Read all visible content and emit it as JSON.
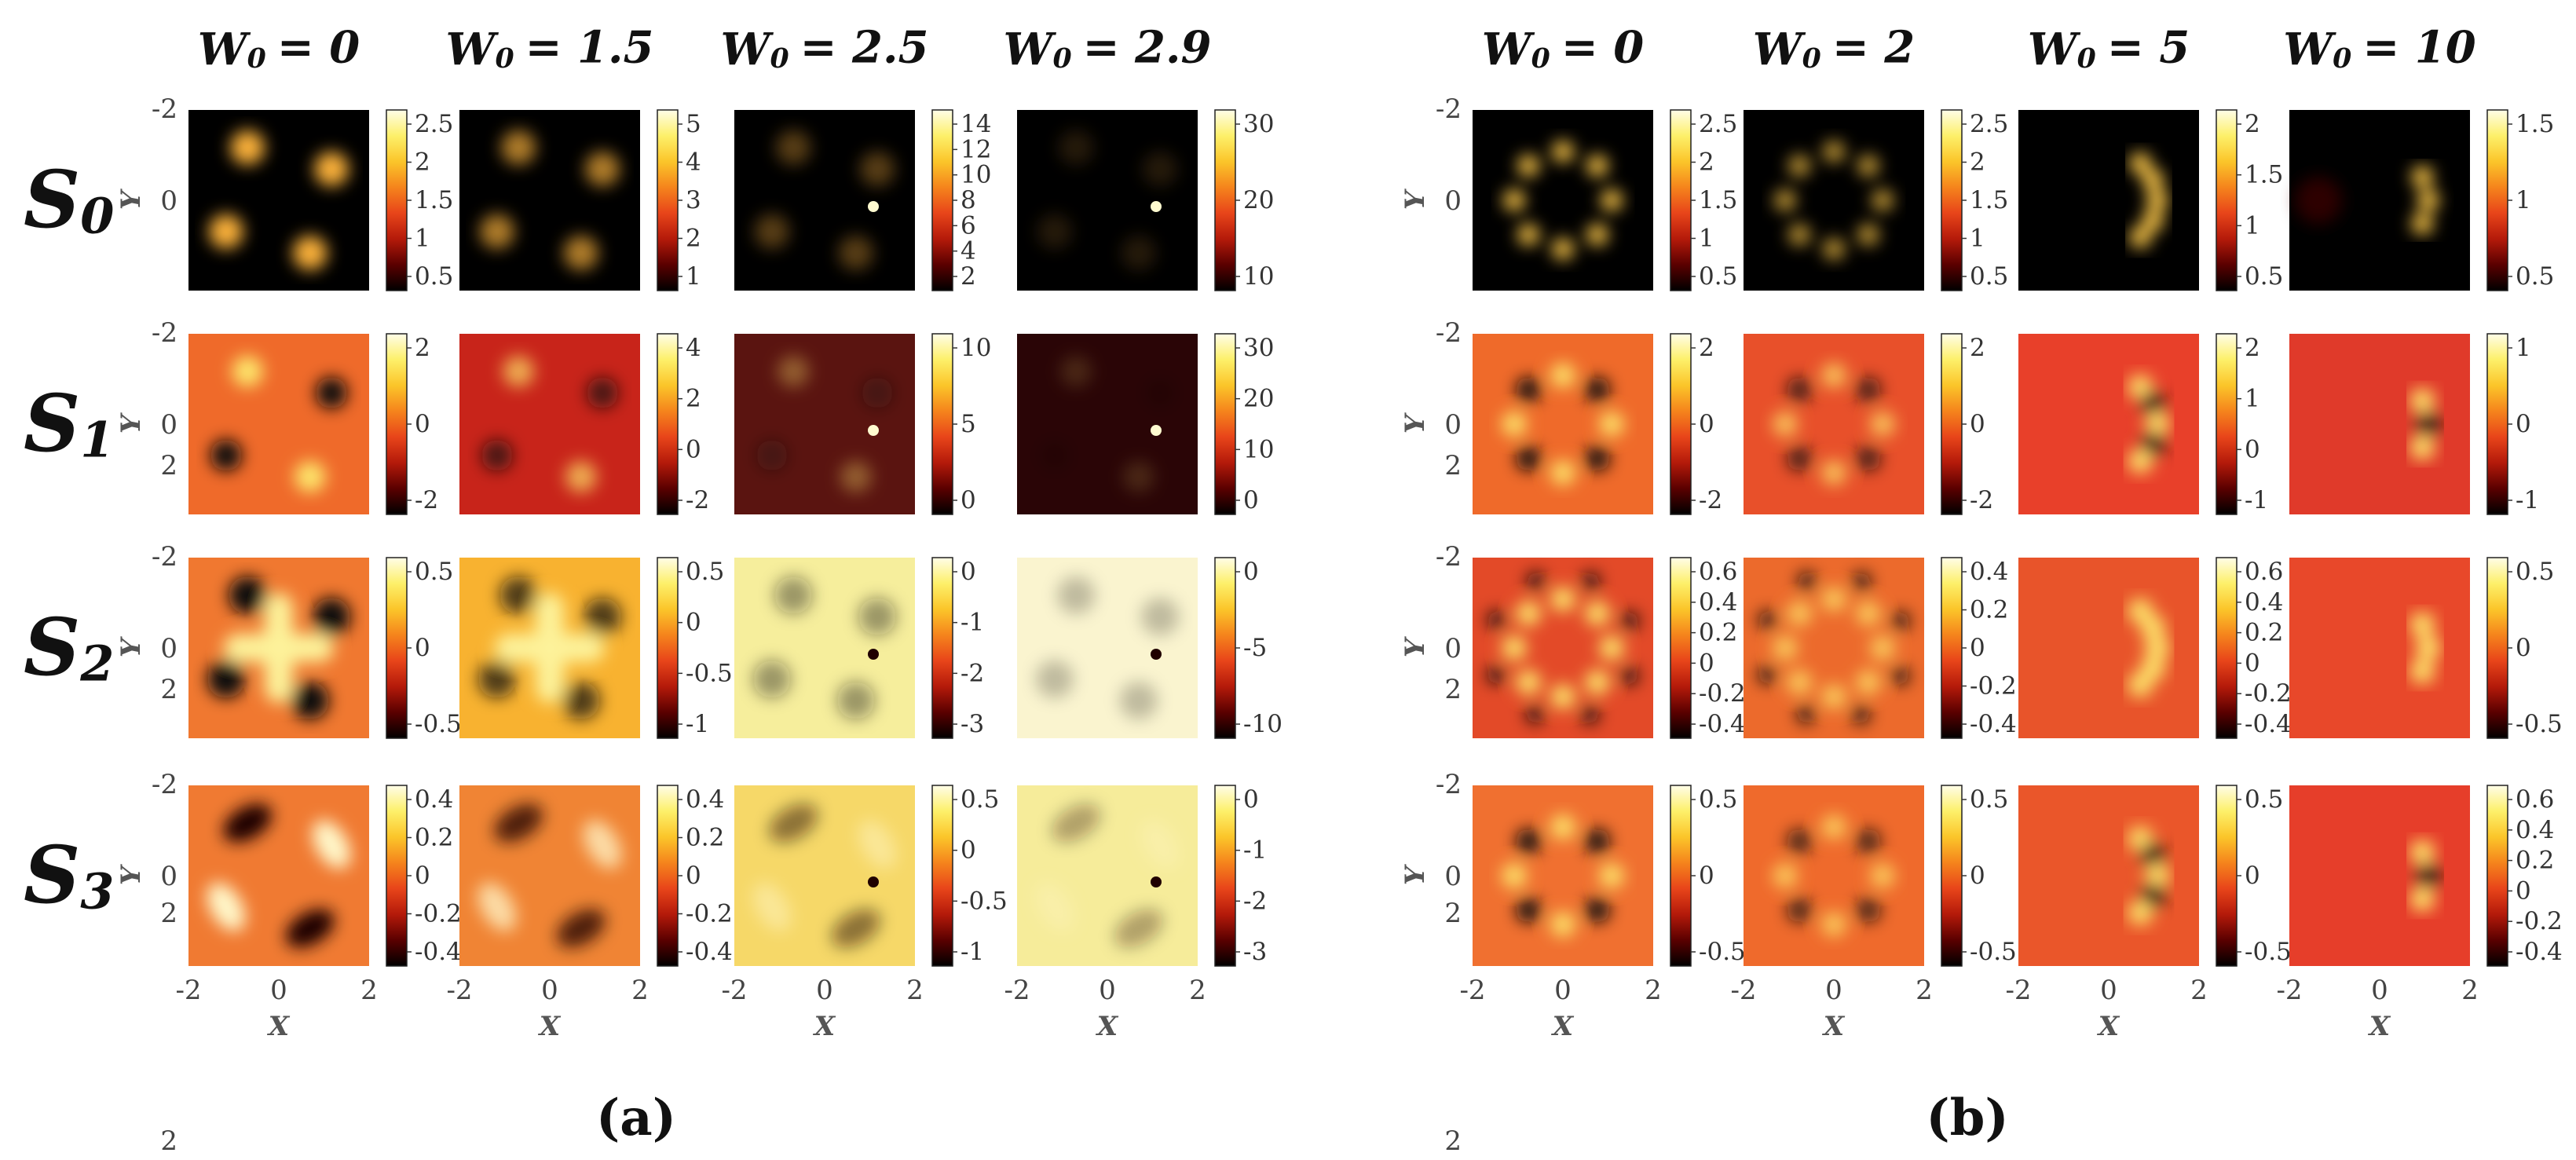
{
  "figure": {
    "panels": [
      {
        "label": "(a)",
        "columns": [
          {
            "header_var": "W",
            "header_sub": "0",
            "header_val": "= 0"
          },
          {
            "header_var": "W",
            "header_sub": "0",
            "header_val": "= 1.5"
          },
          {
            "header_var": "W",
            "header_sub": "0",
            "header_val": "= 2.5"
          },
          {
            "header_var": "W",
            "header_sub": "0",
            "header_val": "= 2.9"
          }
        ],
        "rows": [
          {
            "var": "S",
            "sub": "0",
            "cbars": [
              [
                "2.5",
                "2",
                "1.5",
                "1",
                "0.5"
              ],
              [
                "5",
                "4",
                "3",
                "2",
                "1"
              ],
              [
                "14",
                "12",
                "10",
                "8",
                "6",
                "4",
                "2"
              ],
              [
                "30",
                "20",
                "10"
              ]
            ]
          },
          {
            "var": "S",
            "sub": "1",
            "cbars": [
              [
                "2",
                "0",
                "-2"
              ],
              [
                "4",
                "2",
                "0",
                "-2"
              ],
              [
                "10",
                "5",
                "0"
              ],
              [
                "30",
                "20",
                "10",
                "0"
              ]
            ]
          },
          {
            "var": "S",
            "sub": "2",
            "cbars": [
              [
                "0.5",
                "0",
                "-0.5"
              ],
              [
                "0.5",
                "0",
                "-0.5",
                "-1"
              ],
              [
                "0",
                "-1",
                "-2",
                "-3"
              ],
              [
                "0",
                "-5",
                "-10"
              ]
            ]
          },
          {
            "var": "S",
            "sub": "3",
            "cbars": [
              [
                "0.4",
                "0.2",
                "0",
                "-0.2",
                "-0.4"
              ],
              [
                "0.4",
                "0.2",
                "0",
                "-0.2",
                "-0.4"
              ],
              [
                "0.5",
                "0",
                "-0.5",
                "-1"
              ],
              [
                "0",
                "-1",
                "-2",
                "-3"
              ]
            ]
          }
        ]
      },
      {
        "label": "(b)",
        "columns": [
          {
            "header_var": "W",
            "header_sub": "0",
            "header_val": "= 0"
          },
          {
            "header_var": "W",
            "header_sub": "0",
            "header_val": "= 2"
          },
          {
            "header_var": "W",
            "header_sub": "0",
            "header_val": "= 5"
          },
          {
            "header_var": "W",
            "header_sub": "0",
            "header_val": "= 10"
          }
        ],
        "rows": [
          {
            "cbars": [
              [
                "2.5",
                "2",
                "1.5",
                "1",
                "0.5"
              ],
              [
                "2.5",
                "2",
                "1.5",
                "1",
                "0.5"
              ],
              [
                "2",
                "1.5",
                "1",
                "0.5"
              ],
              [
                "1.5",
                "1",
                "0.5"
              ]
            ]
          },
          {
            "cbars": [
              [
                "2",
                "0",
                "-2"
              ],
              [
                "2",
                "0",
                "-2"
              ],
              [
                "2",
                "1",
                "0",
                "-1"
              ],
              [
                "1",
                "0",
                "-1"
              ]
            ]
          },
          {
            "cbars": [
              [
                "0.6",
                "0.4",
                "0.2",
                "0",
                "-0.2",
                "-0.4"
              ],
              [
                "0.4",
                "0.2",
                "0",
                "-0.2",
                "-0.4"
              ],
              [
                "0.6",
                "0.4",
                "0.2",
                "0",
                "-0.2",
                "-0.4"
              ],
              [
                "0.5",
                "0",
                "-0.5"
              ]
            ]
          },
          {
            "cbars": [
              [
                "0.5",
                "0",
                "-0.5"
              ],
              [
                "0.5",
                "0",
                "-0.5"
              ],
              [
                "0.5",
                "0",
                "-0.5"
              ],
              [
                "0.6",
                "0.4",
                "0.2",
                "0",
                "-0.2",
                "-0.4"
              ]
            ]
          }
        ]
      }
    ],
    "axes": {
      "x_label": "X",
      "y_label": "Y",
      "x_ticks": [
        "-2",
        "0",
        "2"
      ],
      "y_ticks": [
        "-2",
        "0",
        "2"
      ]
    },
    "colormap": [
      "#000000",
      "#5a0000",
      "#b41a0a",
      "#e8451a",
      "#f5841c",
      "#fbc52a",
      "#fdf06a",
      "#fffde8"
    ]
  }
}
